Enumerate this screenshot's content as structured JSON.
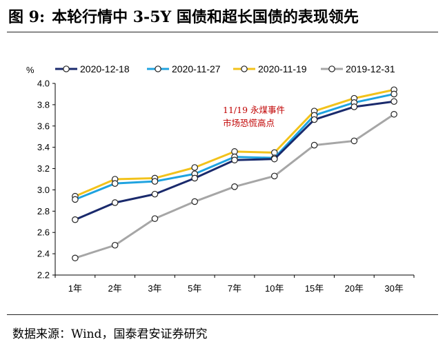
{
  "header": {
    "figure_num": "图 9:",
    "title": "本轮行情中 3-5Y 国债和超长国债的表现领先"
  },
  "source": "数据来源：Wind，国泰君安证券研究",
  "chart_data": {
    "type": "line",
    "unit_label": "%",
    "categories": [
      "1年",
      "2年",
      "3年",
      "5年",
      "7年",
      "10年",
      "15年",
      "20年",
      "30年"
    ],
    "ylim": [
      2.2,
      4.0
    ],
    "yticks": [
      "2.2",
      "2.4",
      "2.6",
      "2.8",
      "3.0",
      "3.2",
      "3.4",
      "3.6",
      "3.8",
      "4.0"
    ],
    "grid": false,
    "legend_position": "top",
    "series": [
      {
        "name": "2020-12-18",
        "color": "#1a2a6c",
        "values": [
          2.72,
          2.88,
          2.96,
          3.11,
          3.28,
          3.29,
          3.66,
          3.78,
          3.83
        ]
      },
      {
        "name": "2020-11-27",
        "color": "#1fa3e0",
        "values": [
          2.91,
          3.06,
          3.08,
          3.15,
          3.31,
          3.3,
          3.7,
          3.82,
          3.9
        ]
      },
      {
        "name": "2020-11-19",
        "color": "#f2c21b",
        "values": [
          2.94,
          3.1,
          3.11,
          3.21,
          3.36,
          3.35,
          3.74,
          3.86,
          3.94
        ]
      },
      {
        "name": "2019-12-31",
        "color": "#a6a6a6",
        "values": [
          2.36,
          2.48,
          2.73,
          2.89,
          3.03,
          3.13,
          3.42,
          3.46,
          3.71
        ]
      }
    ],
    "annotation": {
      "lines": [
        "11/19 永煤事件",
        "市场恐慌高点"
      ],
      "color": "#c00000"
    }
  }
}
